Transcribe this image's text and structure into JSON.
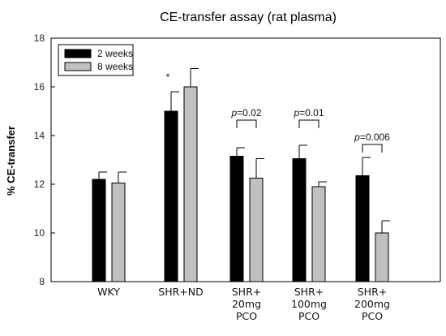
{
  "chart_data": {
    "type": "bar",
    "title": "CE-transfer assay (rat plasma)",
    "ylabel": "% CE-transfer",
    "xlabel": "",
    "ylim": [
      8,
      18
    ],
    "yticks": [
      8,
      10,
      12,
      14,
      16,
      18
    ],
    "categories": [
      [
        "WKY"
      ],
      [
        "SHR+ND"
      ],
      [
        "SHR+",
        "20mg",
        "PCO"
      ],
      [
        "SHR+",
        "100mg",
        "PCO"
      ],
      [
        "SHR+",
        "200mg",
        "PCO"
      ]
    ],
    "series": [
      {
        "name": "2 weeks",
        "color": "#000000",
        "values": [
          12.2,
          15.0,
          13.15,
          13.05,
          12.35
        ],
        "errors": [
          0.3,
          0.8,
          0.35,
          0.55,
          0.75
        ]
      },
      {
        "name": "8 weeks",
        "color": "#c0c0c0",
        "values": [
          12.05,
          16.0,
          12.25,
          11.9,
          10.0
        ],
        "errors": [
          0.45,
          0.75,
          0.8,
          0.2,
          0.5
        ]
      }
    ],
    "annotations": [
      {
        "category": 1,
        "text": "*"
      },
      {
        "category": 2,
        "text": "p=0.02"
      },
      {
        "category": 3,
        "text": "p=0.01"
      },
      {
        "category": 4,
        "text": "p=0.006"
      }
    ],
    "legend_position": "top-left",
    "grid": false
  }
}
